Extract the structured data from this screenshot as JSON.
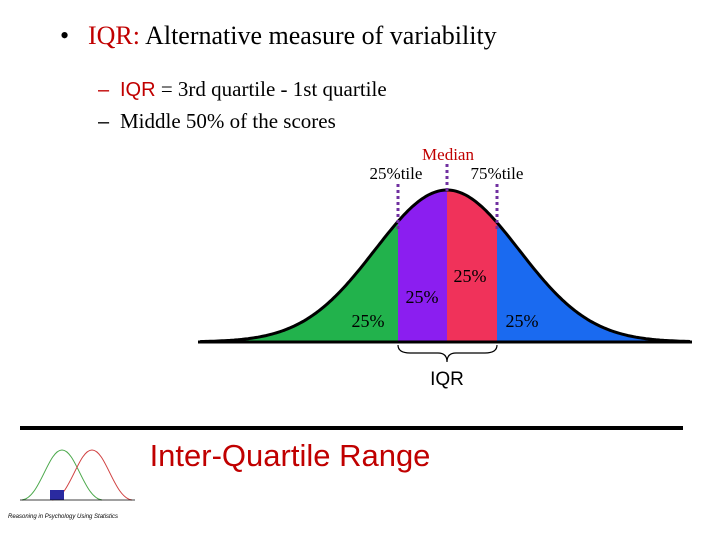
{
  "title": {
    "term": "IQR:",
    "text": "Alternative measure of variability"
  },
  "bullets": [
    {
      "term": "IQR",
      "text": "= 3rd quartile - 1st quartile"
    },
    {
      "text": "Middle 50% of the scores"
    }
  ],
  "figure": {
    "labels": {
      "median": "Median",
      "q1": "25%tile",
      "q3": "75%tile"
    },
    "areas": [
      "25%",
      "25%",
      "25%",
      "25%"
    ],
    "span_label": "IQR"
  },
  "footer": {
    "heading": "Inter-Quartile Range",
    "logo_caption": "Reasoning in Psychology Using Statistics"
  }
}
